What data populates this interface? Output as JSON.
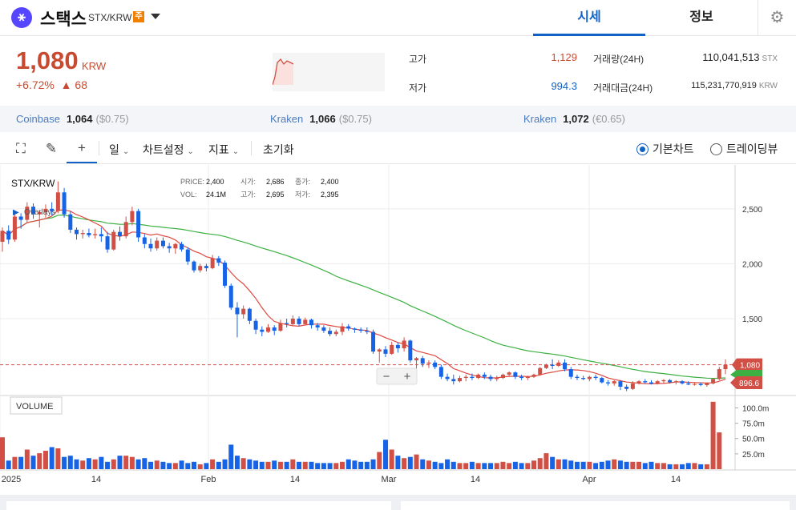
{
  "header": {
    "coin_name": "스택스",
    "pair": "STX/KRW",
    "warning_badge": "주",
    "tabs": [
      "시세",
      "정보"
    ]
  },
  "ticker": {
    "price": "1,080",
    "unit": "KRW",
    "change_pct": "+6.72%",
    "change_abs": "▲ 68",
    "high_label": "고가",
    "high": "1,129",
    "low_label": "저가",
    "low": "994.3",
    "vol_label": "거래량(24H)",
    "vol": "110,041,513",
    "vol_unit": "STX",
    "amt_label": "거래대금(24H)",
    "amt": "115,231,770,919",
    "amt_unit": "KRW"
  },
  "exchanges": [
    {
      "name": "Coinbase",
      "price": "1,064",
      "sub": "($0.75)"
    },
    {
      "name": "Kraken",
      "price": "1,066",
      "sub": "($0.75)"
    },
    {
      "name": "Kraken",
      "price": "1,072",
      "sub": "(€0.65)"
    }
  ],
  "toolbar": {
    "interval": "일",
    "chart_settings": "차트설정",
    "indicators": "지표",
    "reset": "초기화",
    "basic_chart": "기본차트",
    "tradingview": "트레이딩뷰"
  },
  "colors": {
    "up": "#d24f45",
    "down": "#1763e6",
    "ma_short": "#e0483e",
    "ma_long": "#3cb043",
    "accent": "#1261c4"
  },
  "chart_data": {
    "type": "candlestick",
    "symbol": "STX/KRW",
    "indicator_label": "Overlays",
    "info": {
      "PRICE": "2,400",
      "VOL": "24.1M",
      "시가": "2,686",
      "고가": "2,695",
      "종가": "2,400",
      "저가": "2,395"
    },
    "y_ticks": [
      "2,500",
      "2,000",
      "1,500"
    ],
    "ylim": [
      800,
      2900
    ],
    "x_ticks": [
      "2025",
      "14",
      "Feb",
      "14",
      "Mar",
      "14",
      "Apr",
      "14"
    ],
    "current_price_label": "1,080",
    "ma_label": "896.6",
    "current_price": 1080,
    "volume_label": "VOLUME",
    "volume_ticks": [
      "100.0m",
      "75.0m",
      "50.0m",
      "25.0m"
    ],
    "volume_ylim": [
      0,
      115
    ],
    "candles": [
      [
        2200,
        2330,
        2110,
        2300
      ],
      [
        2300,
        2350,
        2180,
        2220
      ],
      [
        2220,
        2470,
        2200,
        2430
      ],
      [
        2430,
        2460,
        2320,
        2400
      ],
      [
        2400,
        2560,
        2380,
        2520
      ],
      [
        2520,
        2550,
        2410,
        2450
      ],
      [
        2450,
        2490,
        2330,
        2470
      ],
      [
        2470,
        2540,
        2420,
        2500
      ],
      [
        2500,
        2560,
        2440,
        2480
      ],
      [
        2480,
        2750,
        2460,
        2650
      ],
      [
        2650,
        2690,
        2420,
        2450
      ],
      [
        2450,
        2480,
        2280,
        2310
      ],
      [
        2310,
        2330,
        2220,
        2270
      ],
      [
        2270,
        2310,
        2230,
        2280
      ],
      [
        2280,
        2320,
        2240,
        2260
      ],
      [
        2260,
        2320,
        2230,
        2270
      ],
      [
        2270,
        2330,
        2200,
        2250
      ],
      [
        2250,
        2290,
        2100,
        2130
      ],
      [
        2130,
        2310,
        2120,
        2290
      ],
      [
        2290,
        2340,
        2210,
        2250
      ],
      [
        2250,
        2430,
        2230,
        2380
      ],
      [
        2380,
        2520,
        2350,
        2480
      ],
      [
        2480,
        2500,
        2200,
        2240
      ],
      [
        2240,
        2270,
        2140,
        2180
      ],
      [
        2180,
        2230,
        2110,
        2140
      ],
      [
        2140,
        2240,
        2120,
        2210
      ],
      [
        2210,
        2240,
        2140,
        2160
      ],
      [
        2160,
        2190,
        2100,
        2140
      ],
      [
        2140,
        2190,
        2090,
        2180
      ],
      [
        2180,
        2200,
        2110,
        2130
      ],
      [
        2130,
        2150,
        1990,
        2020
      ],
      [
        2020,
        2030,
        1920,
        1940
      ],
      [
        1940,
        2000,
        1920,
        1980
      ],
      [
        1980,
        2000,
        1930,
        1960
      ],
      [
        1960,
        2080,
        1950,
        2050
      ],
      [
        2050,
        2070,
        1980,
        2010
      ],
      [
        2010,
        2030,
        1780,
        1800
      ],
      [
        1800,
        1820,
        1580,
        1600
      ],
      [
        1600,
        1650,
        1330,
        1540
      ],
      [
        1540,
        1620,
        1500,
        1590
      ],
      [
        1590,
        1600,
        1450,
        1480
      ],
      [
        1480,
        1500,
        1360,
        1400
      ],
      [
        1400,
        1430,
        1340,
        1380
      ],
      [
        1380,
        1450,
        1370,
        1420
      ],
      [
        1420,
        1440,
        1350,
        1390
      ],
      [
        1390,
        1490,
        1380,
        1460
      ],
      [
        1460,
        1500,
        1420,
        1450
      ],
      [
        1450,
        1530,
        1440,
        1500
      ],
      [
        1500,
        1520,
        1430,
        1450
      ],
      [
        1450,
        1510,
        1440,
        1490
      ],
      [
        1490,
        1500,
        1410,
        1440
      ],
      [
        1440,
        1460,
        1390,
        1420
      ],
      [
        1420,
        1440,
        1370,
        1390
      ],
      [
        1390,
        1420,
        1340,
        1360
      ],
      [
        1360,
        1400,
        1340,
        1380
      ],
      [
        1380,
        1460,
        1350,
        1430
      ],
      [
        1430,
        1450,
        1390,
        1410
      ],
      [
        1410,
        1420,
        1370,
        1400
      ],
      [
        1400,
        1420,
        1370,
        1390
      ],
      [
        1390,
        1420,
        1360,
        1380
      ],
      [
        1380,
        1400,
        1180,
        1200
      ],
      [
        1200,
        1230,
        1100,
        1220
      ],
      [
        1220,
        1250,
        1150,
        1180
      ],
      [
        1180,
        1290,
        1170,
        1260
      ],
      [
        1260,
        1280,
        1190,
        1230
      ],
      [
        1230,
        1330,
        1200,
        1300
      ],
      [
        1300,
        1310,
        1100,
        1120
      ],
      [
        1120,
        1150,
        1020,
        1140
      ],
      [
        1140,
        1160,
        1060,
        1090
      ],
      [
        1090,
        1120,
        1050,
        1100
      ],
      [
        1100,
        1120,
        1040,
        1060
      ],
      [
        1060,
        1080,
        950,
        970
      ],
      [
        970,
        1000,
        930,
        950
      ],
      [
        950,
        990,
        900,
        930
      ],
      [
        930,
        980,
        920,
        960
      ],
      [
        960,
        990,
        930,
        970
      ],
      [
        970,
        1000,
        940,
        960
      ],
      [
        960,
        1000,
        950,
        990
      ],
      [
        990,
        1010,
        950,
        970
      ],
      [
        970,
        990,
        930,
        950
      ],
      [
        950,
        980,
        930,
        960
      ],
      [
        960,
        1000,
        950,
        990
      ],
      [
        990,
        1020,
        970,
        1010
      ],
      [
        1010,
        1020,
        950,
        970
      ],
      [
        970,
        990,
        940,
        960
      ],
      [
        960,
        980,
        940,
        970
      ],
      [
        970,
        1000,
        960,
        990
      ],
      [
        990,
        1060,
        980,
        1050
      ],
      [
        1050,
        1090,
        1040,
        1080
      ],
      [
        1080,
        1130,
        1040,
        1070
      ],
      [
        1070,
        1120,
        1060,
        1100
      ],
      [
        1100,
        1130,
        1020,
        1040
      ],
      [
        1040,
        1060,
        950,
        970
      ],
      [
        970,
        990,
        940,
        960
      ],
      [
        960,
        980,
        940,
        950
      ],
      [
        950,
        980,
        930,
        970
      ],
      [
        970,
        990,
        940,
        960
      ],
      [
        960,
        970,
        910,
        920
      ],
      [
        920,
        940,
        890,
        910
      ],
      [
        910,
        940,
        890,
        930
      ],
      [
        930,
        940,
        850,
        880
      ],
      [
        880,
        900,
        840,
        860
      ],
      [
        860,
        930,
        850,
        910
      ],
      [
        910,
        940,
        900,
        930
      ],
      [
        930,
        950,
        910,
        920
      ],
      [
        920,
        940,
        900,
        910
      ],
      [
        910,
        940,
        900,
        930
      ],
      [
        930,
        950,
        910,
        940
      ],
      [
        940,
        950,
        910,
        920
      ],
      [
        920,
        940,
        900,
        930
      ],
      [
        930,
        940,
        900,
        910
      ],
      [
        910,
        930,
        895,
        900
      ],
      [
        900,
        920,
        890,
        905
      ],
      [
        905,
        920,
        885,
        895
      ],
      [
        895,
        920,
        880,
        910
      ],
      [
        910,
        960,
        900,
        950
      ],
      [
        950,
        1060,
        940,
        1040
      ],
      [
        1040,
        1129,
        994,
        1080
      ]
    ],
    "volumes": [
      52,
      14,
      20,
      20,
      32,
      22,
      26,
      30,
      36,
      34,
      20,
      22,
      16,
      14,
      18,
      16,
      20,
      12,
      16,
      22,
      22,
      20,
      16,
      18,
      12,
      14,
      12,
      10,
      10,
      14,
      10,
      12,
      8,
      10,
      16,
      12,
      16,
      40,
      22,
      18,
      16,
      14,
      12,
      12,
      14,
      12,
      12,
      16,
      12,
      12,
      12,
      10,
      10,
      10,
      10,
      12,
      16,
      14,
      12,
      12,
      16,
      28,
      48,
      32,
      22,
      18,
      20,
      24,
      16,
      14,
      12,
      10,
      16,
      12,
      10,
      10,
      12,
      10,
      10,
      10,
      10,
      12,
      10,
      12,
      10,
      10,
      14,
      18,
      26,
      20,
      16,
      16,
      14,
      12,
      12,
      12,
      10,
      12,
      14,
      16,
      14,
      12,
      12,
      12,
      10,
      12,
      10,
      10,
      8,
      8,
      8,
      10,
      10,
      8,
      8,
      110,
      60
    ]
  }
}
